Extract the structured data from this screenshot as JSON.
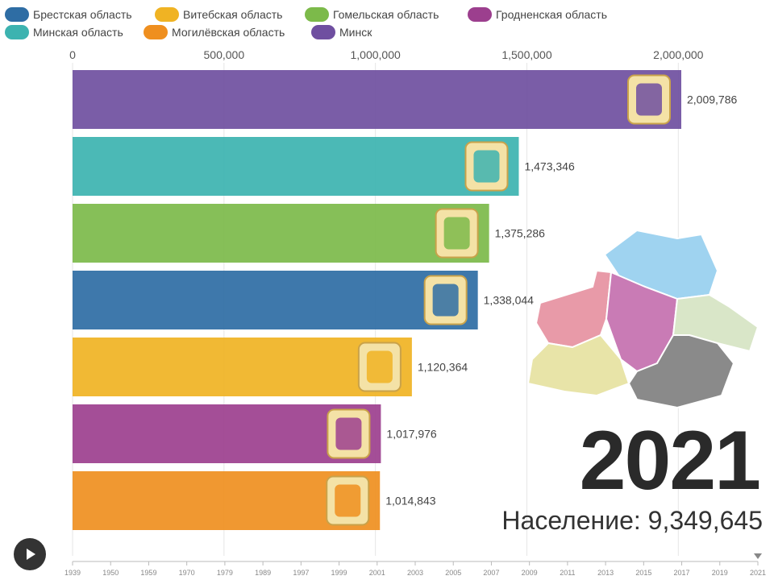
{
  "legend": [
    {
      "label": "Брестская область",
      "color": "#2e6da4"
    },
    {
      "label": "Витебская область",
      "color": "#f0b323"
    },
    {
      "label": "Гомельская область",
      "color": "#7cba4a"
    },
    {
      "label": "Гродненская область",
      "color": "#9c3f8e"
    },
    {
      "label": "Минская область",
      "color": "#3cb3b0"
    },
    {
      "label": "Могилёвская область",
      "color": "#ef8f1f"
    },
    {
      "label": "Минск",
      "color": "#6f4fa0"
    }
  ],
  "chart_data": {
    "type": "bar",
    "orientation": "horizontal",
    "xlim": [
      0,
      2150000
    ],
    "x_ticks": [
      "0",
      "500,000",
      "1,000,000",
      "1,500,000",
      "2,000,000"
    ],
    "x_tick_values": [
      0,
      500000,
      1000000,
      1500000,
      2000000
    ],
    "bars": [
      {
        "color": "#6f4fa0",
        "value": 2009786,
        "value_label": "2,009,786"
      },
      {
        "color": "#3cb3b0",
        "value": 1473346,
        "value_label": "1,473,346"
      },
      {
        "color": "#7cba4a",
        "value": 1375286,
        "value_label": "1,375,286"
      },
      {
        "color": "#2e6da4",
        "value": 1338044,
        "value_label": "1,338,044"
      },
      {
        "color": "#f0b323",
        "value": 1120364,
        "value_label": "1,120,364"
      },
      {
        "color": "#9c3f8e",
        "value": 1017976,
        "value_label": "1,017,976"
      },
      {
        "color": "#ef8f1f",
        "value": 1014843,
        "value_label": "1,014,843"
      }
    ]
  },
  "timeline": {
    "labels": [
      "1939",
      "1950",
      "1959",
      "1970",
      "1979",
      "1989",
      "1997",
      "1999",
      "2001",
      "2003",
      "2005",
      "2007",
      "2009",
      "2011",
      "2013",
      "2015",
      "2017",
      "2019",
      "2021"
    ],
    "current_index": 18
  },
  "year": "2021",
  "population": {
    "label": "Население:",
    "value": "9,349,645"
  },
  "map_colors": [
    "#9fd3f0",
    "#e89aa8",
    "#c97bb5",
    "#d9e6c8",
    "#e8e4a8",
    "#8a8a8a"
  ],
  "icons": {
    "play": "play-icon"
  }
}
